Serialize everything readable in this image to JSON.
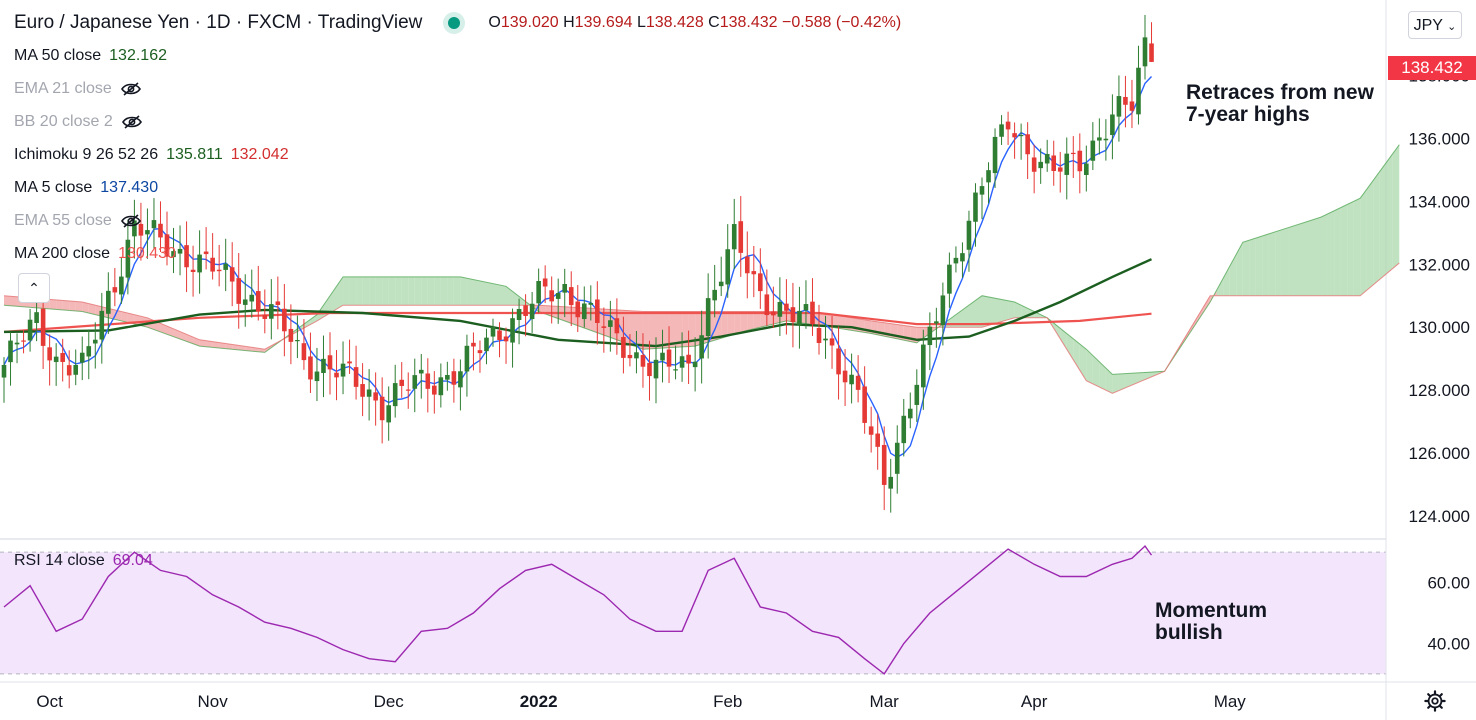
{
  "header": {
    "title": "Euro / Japanese Yen · 1D · FXCM · TradingView",
    "ohlc": {
      "o_label": "O",
      "o": "139.020",
      "h_label": "H",
      "h": "139.694",
      "l_label": "L",
      "l": "138.428",
      "c_label": "C",
      "c": "138.432",
      "change": "−0.588 (−0.42%)"
    }
  },
  "indicators": [
    {
      "name": "MA 50 close",
      "value": "132.162",
      "color": "#1b5e20",
      "visible": true
    },
    {
      "name": "EMA 21 close",
      "value": "",
      "color": "#a3a6af",
      "visible": false
    },
    {
      "name": "BB 20 close 2",
      "value": "",
      "color": "#a3a6af",
      "visible": false
    },
    {
      "name": "Ichimoku 9 26 52 26",
      "value": "135.811",
      "value2": "132.042",
      "color": "#1b5e20",
      "color2": "#d32f2f",
      "visible": true
    },
    {
      "name": "MA 5 close",
      "value": "137.430",
      "color": "#0d47a1",
      "visible": true
    },
    {
      "name": "EMA 55 close",
      "value": "",
      "color": "#a3a6af",
      "visible": false
    },
    {
      "name": "MA 200 close",
      "value": "130.430",
      "color": "#ef5350",
      "visible": true
    }
  ],
  "rsi_legend": {
    "name": "RSI 14 close",
    "value": "69.04"
  },
  "currency_button": {
    "label": "JPY",
    "chevron_icon": "chevron-down-icon"
  },
  "price_tag": "138.432",
  "annotations": {
    "top_line1": "Retraces from new",
    "top_line2": "7-year highs",
    "bottom_line1": "Momentum",
    "bottom_line2": "bullish"
  },
  "icons": {
    "settings": "gear-icon",
    "collapse": "chevron-up-icon",
    "hidden": "eye-off-icon",
    "live": "live-dot-icon"
  },
  "colors": {
    "up": "#2e7d32",
    "down": "#e53935",
    "ma5": "#2962ff",
    "ma50": "#1b5e20",
    "ma200": "#ef5350",
    "rsi": "#9c27b0",
    "rsi_band": "#f3e5fc",
    "cloud_bull": "#a5d6a7",
    "cloud_bear": "#ef9a9a"
  },
  "chart_data": {
    "type": "candlestick",
    "symbol": "EURJPY",
    "timeframe": "1D",
    "y_axis": {
      "ticks": [
        "138.000",
        "136.000",
        "134.000",
        "132.000",
        "130.000",
        "128.000",
        "126.000",
        "124.000"
      ],
      "range": [
        123.3,
        140.4
      ]
    },
    "x_axis": {
      "ticks": [
        "Oct",
        "Nov",
        "Dec",
        "2022",
        "Feb",
        "Mar",
        "Apr",
        "May"
      ]
    },
    "rsi_axis": {
      "ticks": [
        "60.00",
        "40.00"
      ],
      "upper_band": 70,
      "lower_band": 30,
      "range": [
        28,
        74
      ]
    },
    "anchors": [
      [
        0,
        128.8
      ],
      [
        5,
        130.2
      ],
      [
        8,
        129.0
      ],
      [
        12,
        128.6
      ],
      [
        16,
        131.0
      ],
      [
        20,
        133.2
      ],
      [
        24,
        132.7
      ],
      [
        28,
        132.3
      ],
      [
        33,
        131.7
      ],
      [
        37,
        131.1
      ],
      [
        42,
        130.2
      ],
      [
        46,
        129.0
      ],
      [
        50,
        128.7
      ],
      [
        54,
        128.2
      ],
      [
        58,
        127.6
      ],
      [
        62,
        128.1
      ],
      [
        66,
        128.3
      ],
      [
        70,
        128.7
      ],
      [
        74,
        129.5
      ],
      [
        78,
        130.3
      ],
      [
        82,
        130.9
      ],
      [
        86,
        131.2
      ],
      [
        89,
        130.7
      ],
      [
        93,
        129.7
      ],
      [
        97,
        129.1
      ],
      [
        101,
        128.7
      ],
      [
        105,
        128.7
      ],
      [
        108,
        130.8
      ],
      [
        112,
        132.7
      ],
      [
        116,
        131.1
      ],
      [
        120,
        130.4
      ],
      [
        124,
        130.1
      ],
      [
        127,
        129.4
      ],
      [
        131,
        127.7
      ],
      [
        135,
        125.1
      ],
      [
        138,
        127.1
      ],
      [
        142,
        129.6
      ],
      [
        146,
        132.4
      ],
      [
        150,
        134.6
      ],
      [
        154,
        136.5
      ],
      [
        157,
        135.7
      ],
      [
        161,
        134.9
      ],
      [
        165,
        135.3
      ],
      [
        170,
        136.7
      ],
      [
        173,
        137.0
      ],
      [
        175,
        139.0
      ],
      [
        176,
        138.43
      ]
    ],
    "ma50": [
      [
        0,
        129.85
      ],
      [
        16,
        129.9
      ],
      [
        30,
        130.4
      ],
      [
        40,
        130.55
      ],
      [
        55,
        130.45
      ],
      [
        70,
        130.2
      ],
      [
        85,
        129.6
      ],
      [
        100,
        129.4
      ],
      [
        110,
        129.7
      ],
      [
        120,
        130.1
      ],
      [
        130,
        130.0
      ],
      [
        140,
        129.6
      ],
      [
        148,
        129.7
      ],
      [
        155,
        130.2
      ],
      [
        162,
        130.8
      ],
      [
        170,
        131.6
      ],
      [
        176,
        132.16
      ]
    ],
    "ma200": [
      [
        0,
        129.85
      ],
      [
        30,
        130.3
      ],
      [
        50,
        130.45
      ],
      [
        80,
        130.45
      ],
      [
        105,
        130.45
      ],
      [
        125,
        130.45
      ],
      [
        140,
        130.1
      ],
      [
        150,
        130.1
      ],
      [
        165,
        130.2
      ],
      [
        176,
        130.43
      ]
    ],
    "ichimoku_span_a": [
      [
        0,
        130.7
      ],
      [
        12,
        130.5
      ],
      [
        22,
        130.0
      ],
      [
        30,
        129.4
      ],
      [
        40,
        129.2
      ],
      [
        48,
        130.4
      ],
      [
        52,
        131.6
      ],
      [
        58,
        131.6
      ],
      [
        70,
        131.6
      ],
      [
        77,
        131.3
      ],
      [
        82,
        130.5
      ],
      [
        90,
        129.9
      ],
      [
        98,
        129.3
      ],
      [
        106,
        129.4
      ],
      [
        114,
        129.9
      ],
      [
        120,
        130.2
      ],
      [
        127,
        130.0
      ],
      [
        133,
        129.8
      ],
      [
        140,
        129.5
      ],
      [
        146,
        130.4
      ],
      [
        150,
        131.0
      ],
      [
        155,
        130.8
      ],
      [
        160,
        130.3
      ],
      [
        166,
        129.3
      ],
      [
        170,
        128.5
      ],
      [
        178,
        128.6
      ],
      [
        185,
        130.8
      ],
      [
        190,
        132.7
      ],
      [
        196,
        133.1
      ],
      [
        202,
        133.5
      ],
      [
        208,
        134.1
      ],
      [
        214,
        135.8
      ]
    ],
    "ichimoku_span_b": [
      [
        0,
        131.0
      ],
      [
        12,
        130.8
      ],
      [
        22,
        130.3
      ],
      [
        30,
        129.6
      ],
      [
        40,
        129.3
      ],
      [
        48,
        130.2
      ],
      [
        52,
        130.7
      ],
      [
        58,
        130.7
      ],
      [
        70,
        130.7
      ],
      [
        77,
        130.7
      ],
      [
        82,
        130.7
      ],
      [
        90,
        130.6
      ],
      [
        98,
        130.5
      ],
      [
        106,
        130.5
      ],
      [
        114,
        130.5
      ],
      [
        120,
        130.5
      ],
      [
        127,
        130.4
      ],
      [
        133,
        130.2
      ],
      [
        140,
        130.0
      ],
      [
        146,
        130.0
      ],
      [
        150,
        130.0
      ],
      [
        155,
        130.3
      ],
      [
        160,
        130.3
      ],
      [
        166,
        128.3
      ],
      [
        170,
        127.9
      ],
      [
        178,
        128.6
      ],
      [
        185,
        131.0
      ],
      [
        190,
        131.0
      ],
      [
        196,
        131.0
      ],
      [
        202,
        131.0
      ],
      [
        208,
        131.0
      ],
      [
        214,
        132.04
      ]
    ],
    "rsi": [
      [
        0,
        52
      ],
      [
        4,
        59
      ],
      [
        8,
        44
      ],
      [
        12,
        48
      ],
      [
        16,
        62
      ],
      [
        20,
        70
      ],
      [
        24,
        64
      ],
      [
        28,
        62
      ],
      [
        32,
        56
      ],
      [
        36,
        52
      ],
      [
        40,
        47
      ],
      [
        44,
        45
      ],
      [
        48,
        42
      ],
      [
        52,
        38
      ],
      [
        56,
        35
      ],
      [
        60,
        34
      ],
      [
        64,
        44
      ],
      [
        68,
        45
      ],
      [
        72,
        50
      ],
      [
        76,
        58
      ],
      [
        80,
        64
      ],
      [
        84,
        66
      ],
      [
        88,
        61
      ],
      [
        92,
        56
      ],
      [
        96,
        48
      ],
      [
        100,
        44
      ],
      [
        104,
        44
      ],
      [
        108,
        64
      ],
      [
        112,
        68
      ],
      [
        116,
        52
      ],
      [
        120,
        50
      ],
      [
        124,
        44
      ],
      [
        128,
        42
      ],
      [
        132,
        35
      ],
      [
        135,
        30
      ],
      [
        138,
        40
      ],
      [
        142,
        50
      ],
      [
        146,
        57
      ],
      [
        150,
        64
      ],
      [
        154,
        71
      ],
      [
        158,
        66
      ],
      [
        162,
        62
      ],
      [
        166,
        62
      ],
      [
        170,
        66
      ],
      [
        173,
        68
      ],
      [
        175,
        72
      ],
      [
        176,
        69.04
      ]
    ],
    "title": "Euro / Japanese Yen · 1D · FXCM · TradingView",
    "last_price": 138.432,
    "annotations": [
      "Retraces from new 7-year highs",
      "Momentum bullish"
    ]
  }
}
